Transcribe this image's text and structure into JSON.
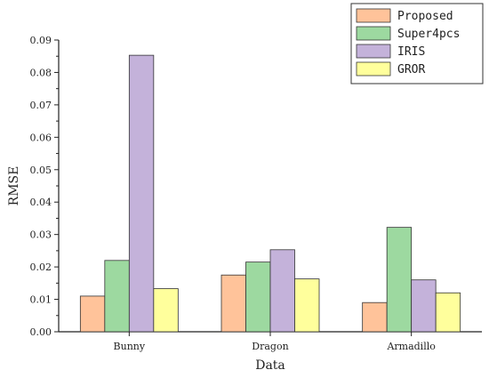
{
  "chart_data": {
    "type": "bar",
    "title": "",
    "xlabel": "Data",
    "ylabel": "RMSE",
    "categories": [
      "Bunny",
      "Dragon",
      "Armadillo"
    ],
    "ylim": [
      0,
      0.09
    ],
    "yticks": [
      "0.00",
      "0.01",
      "0.02",
      "0.03",
      "0.04",
      "0.05",
      "0.06",
      "0.07",
      "0.08",
      "0.09"
    ],
    "grid": false,
    "legend_position": "top-right",
    "series": [
      {
        "name": "Proposed",
        "color": "#FFC39A",
        "values": [
          0.011,
          0.0175,
          0.009
        ]
      },
      {
        "name": "Super4pcs",
        "color": "#9DD9A0",
        "values": [
          0.022,
          0.0215,
          0.0322
        ]
      },
      {
        "name": "IRIS",
        "color": "#C4B2DA",
        "values": [
          0.0853,
          0.0253,
          0.016
        ]
      },
      {
        "name": "GROR",
        "color": "#FFFF9C",
        "values": [
          0.0133,
          0.0163,
          0.012
        ]
      }
    ]
  }
}
